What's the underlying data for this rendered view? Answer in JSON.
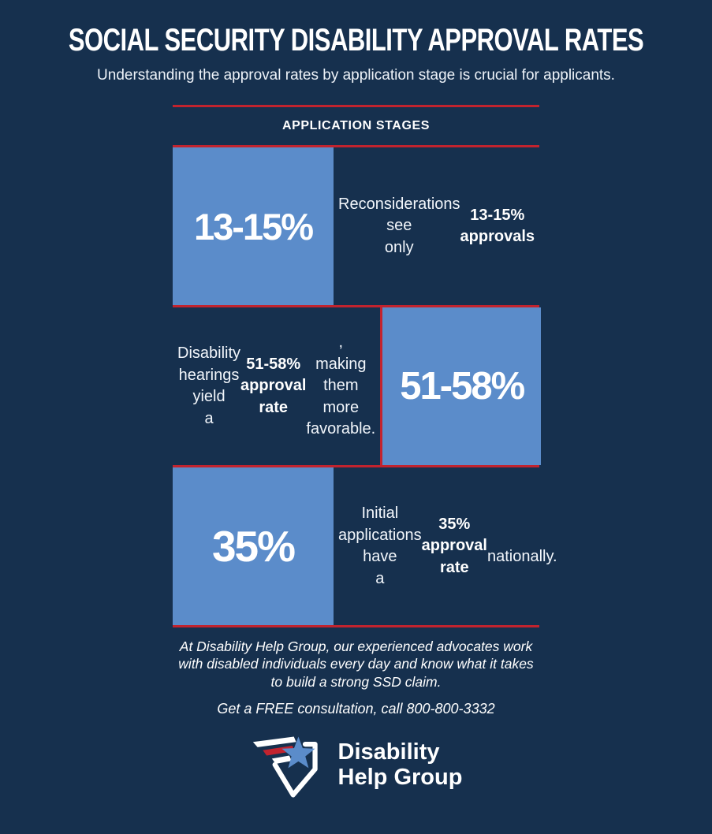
{
  "page": {
    "title": "SOCIAL SECURITY DISABILITY APPROVAL RATES",
    "subtitle": "Understanding the approval rates by application stage is crucial for applicants."
  },
  "stages": {
    "heading": "APPLICATION STAGES",
    "rows": [
      {
        "value": "13-15%",
        "box_side": "left",
        "description_segments": [
          {
            "text": "Reconsiderations see\nonly ",
            "bold": false
          },
          {
            "text": "13-15% approvals",
            "bold": true
          }
        ]
      },
      {
        "value": "51-58%",
        "box_side": "right",
        "description_segments": [
          {
            "text": "Disability hearings yield\na ",
            "bold": false
          },
          {
            "text": "51-58% approval rate",
            "bold": true
          },
          {
            "text": ",\nmaking them more\nfavorable.",
            "bold": false
          }
        ]
      },
      {
        "value": "35%",
        "box_side": "left",
        "description_segments": [
          {
            "text": "Initial applications have\na ",
            "bold": false
          },
          {
            "text": "35% approval rate",
            "bold": true
          },
          {
            "text": "\nnationally.",
            "bold": false
          }
        ]
      }
    ]
  },
  "footer": {
    "blurb": "At Disability Help Group, our experienced advocates work\nwith disabled individuals every day and know what it takes\nto build a strong SSD claim.",
    "cta": "Get a FREE consultation, call 800-800-3332"
  },
  "logo": {
    "name": "Disability Help Group",
    "line1": "Disability",
    "line2": "Help Group"
  },
  "icons": {
    "logo": "shield-star-wings-icon"
  },
  "colors": {
    "background": "#16304e",
    "panel_blue": "#5b8cca",
    "accent_red": "#c2232e",
    "text_white": "#ffffff"
  },
  "chart_data": {
    "type": "table",
    "title": "SOCIAL SECURITY DISABILITY APPROVAL RATES",
    "categories": [
      "Reconsiderations",
      "Disability hearings",
      "Initial applications"
    ],
    "values": [
      "13-15%",
      "51-58%",
      "35%"
    ],
    "values_numeric_pct": [
      [
        13,
        15
      ],
      [
        51,
        58
      ],
      [
        35,
        35
      ]
    ]
  }
}
